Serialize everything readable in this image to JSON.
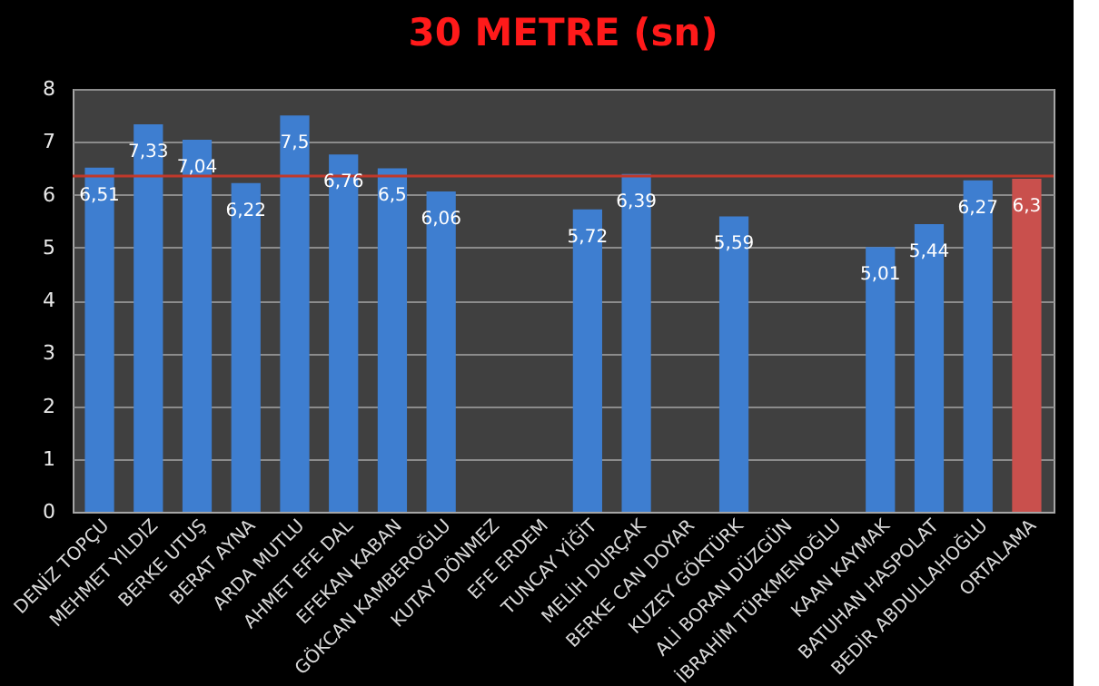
{
  "chart_data": {
    "type": "bar",
    "title": "30 METRE (sn)",
    "categories": [
      "DENİZ TOPÇU",
      "MEHMET YILDIZ",
      "BERKE UTUŞ",
      "BERAT AYNA",
      "ARDA MUTLU",
      "AHMET EFE DAL",
      "EFEKAN KABAN",
      "GÖKCAN KAMBEROĞLU",
      "KUTAY DÖNMEZ",
      "EFE ERDEM",
      "TUNCAY YİĞİT",
      "MELİH DURÇAK",
      "BERKE CAN DOYAR",
      "KUZEY GÖKTÜRK",
      "ALİ BORAN DÜZGÜN",
      "İBRAHİM TÜRKMENOĞLU",
      "KAAN KAYMAK",
      "BATUHAN HASPOLAT",
      "BEDİR ABDULLAHOĞLU",
      "ORTALAMA"
    ],
    "values": [
      6.51,
      7.33,
      7.04,
      6.22,
      7.5,
      6.76,
      6.5,
      6.06,
      null,
      null,
      5.72,
      6.39,
      null,
      5.59,
      null,
      null,
      5.01,
      5.44,
      6.27,
      6.3
    ],
    "value_labels": [
      "6,51",
      "7,33",
      "7,04",
      "6,22",
      "7,5",
      "6,76",
      "6,5",
      "6,06",
      null,
      null,
      "5,72",
      "6,39",
      null,
      "5,59",
      null,
      null,
      "5,01",
      "5,44",
      "6,27",
      "6,3"
    ],
    "colors": [
      "#3e7ed0",
      "#3e7ed0",
      "#3e7ed0",
      "#3e7ed0",
      "#3e7ed0",
      "#3e7ed0",
      "#3e7ed0",
      "#3e7ed0",
      "#3e7ed0",
      "#3e7ed0",
      "#3e7ed0",
      "#3e7ed0",
      "#3e7ed0",
      "#3e7ed0",
      "#3e7ed0",
      "#3e7ed0",
      "#3e7ed0",
      "#3e7ed0",
      "#3e7ed0",
      "#c9504d"
    ],
    "ylim": [
      0,
      8
    ],
    "yticks": [
      0,
      1,
      2,
      3,
      4,
      5,
      6,
      7,
      8
    ],
    "grid": "y",
    "legend": false,
    "ref_lines": [
      {
        "axis": "y",
        "value": 6.35,
        "color": "#c0392b"
      }
    ]
  }
}
